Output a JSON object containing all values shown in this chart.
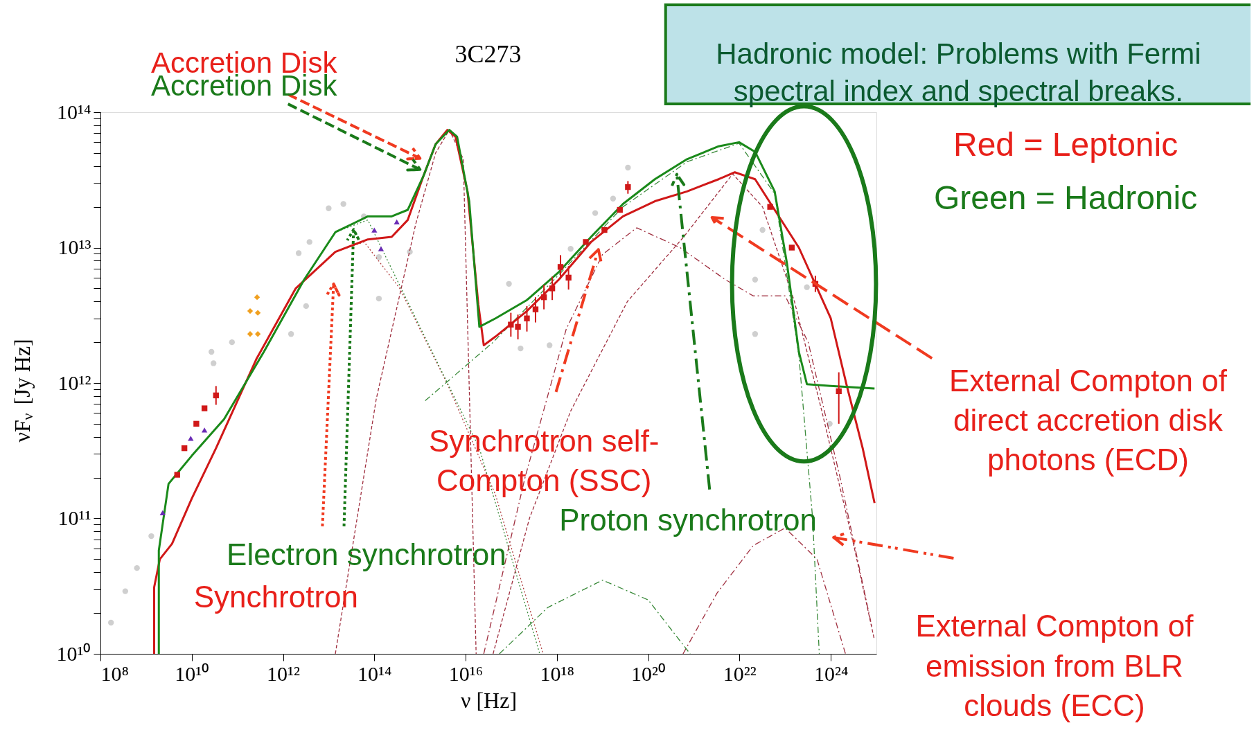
{
  "chart_data": {
    "type": "line",
    "title": "3C273",
    "xlabel": "ν [Hz]",
    "ylabel": "νF$_{ν}$ [Jy Hz]",
    "log": "xy",
    "grid": false,
    "xlim": [
      100000000.0,
      1e+25
    ],
    "ylim": [
      10000000000.0,
      100000000000000.0
    ],
    "xticks": [
      {
        "value": 100000000.0,
        "label": "10⁸"
      },
      {
        "value": 10000000000.0,
        "label": "10¹⁰"
      },
      {
        "value": 1000000000000.0,
        "label": "10¹²"
      },
      {
        "value": 100000000000000.0,
        "label": "10¹⁴"
      },
      {
        "value": 1e+16,
        "label": "10¹⁶"
      },
      {
        "value": 1e+18,
        "label": "10¹⁸"
      },
      {
        "value": 1e+20,
        "label": "10²⁰"
      },
      {
        "value": 1e+22,
        "label": "10²²"
      },
      {
        "value": 1e+24,
        "label": "10²⁴"
      }
    ],
    "yticks": [
      {
        "value": 10000000000.0,
        "label": "10¹⁰"
      },
      {
        "value": 100000000000.0,
        "label": "10¹¹"
      },
      {
        "value": 1000000000000.0,
        "label": "10¹²"
      },
      {
        "value": 10000000000000.0,
        "label": "10¹³"
      },
      {
        "value": 100000000000000.0,
        "label": "10¹⁴"
      },
      {
        "value": 20000000000.0,
        "label": null
      },
      {
        "value": 30000000000.0,
        "label": null
      },
      {
        "value": 40000000000.0,
        "label": null
      },
      {
        "value": 50000000000.0,
        "label": null
      },
      {
        "value": 60000000000.0,
        "label": null
      },
      {
        "value": 70000000000.0,
        "label": null
      },
      {
        "value": 80000000000.0,
        "label": null
      },
      {
        "value": 90000000000.0,
        "label": null
      },
      {
        "value": 200000000000.0,
        "label": null
      },
      {
        "value": 300000000000.0,
        "label": null
      },
      {
        "value": 400000000000.0,
        "label": null
      },
      {
        "value": 500000000000.0,
        "label": null
      },
      {
        "value": 600000000000.0,
        "label": null
      },
      {
        "value": 700000000000.0,
        "label": null
      },
      {
        "value": 800000000000.0,
        "label": null
      },
      {
        "value": 900000000000.0,
        "label": null
      },
      {
        "value": 2000000000000.0,
        "label": null
      },
      {
        "value": 3000000000000.0,
        "label": null
      },
      {
        "value": 4000000000000.0,
        "label": null
      },
      {
        "value": 5000000000000.0,
        "label": null
      },
      {
        "value": 6000000000000.0,
        "label": null
      },
      {
        "value": 7000000000000.0,
        "label": null
      },
      {
        "value": 8000000000000.0,
        "label": null
      },
      {
        "value": 9000000000000.0,
        "label": null
      },
      {
        "value": 20000000000000.0,
        "label": null
      },
      {
        "value": 30000000000000.0,
        "label": null
      },
      {
        "value": 40000000000000.0,
        "label": null
      },
      {
        "value": 50000000000000.0,
        "label": null
      },
      {
        "value": 60000000000000.0,
        "label": null
      },
      {
        "value": 70000000000000.0,
        "label": null
      },
      {
        "value": 80000000000000.0,
        "label": null
      },
      {
        "value": 90000000000000.0,
        "label": null
      }
    ],
    "series": [
      {
        "type": "scatter",
        "marker": "circle",
        "color": "#cfcfcf",
        "x": [
          170000000.0,
          350000000.0,
          630000000.0,
          1300000000.0,
          27000000000.0,
          30000000000.0,
          76000000000.0,
          1500000000000.0,
          3200000000000.0,
          2200000000000.0,
          3800000000000.0,
          10000000000000.0,
          21000000000000.0,
          59000000000000.0,
          126000000000000.0,
          126000000000000.0,
          600000000000000.0,
          8.9e+16,
          1.6e+17,
          6.9e+17,
          2e+18,
          6.9e+18,
          1.7e+19,
          3.6e+19,
          3.2e+22,
          2.2e+22,
          2.2e+22,
          9.5e+23,
          3e+23
        ],
        "values": [
          17000000000.0,
          29000000000.0,
          43000000000.0,
          74000000000.0,
          1700000000000.0,
          1400000000000.0,
          2000000000000.0,
          2300000000000.0,
          3700000000000.0,
          9100000000000.0,
          11000000000000.0,
          19500000000000.0,
          21000000000000.0,
          17000000000000.0,
          8500000000000.0,
          4200000000000.0,
          9300000000000.0,
          5400000000000.0,
          1800000000000.0,
          1900000000000.0,
          9800000000000.0,
          18000000000000.0,
          23000000000000.0,
          39000000000000.0,
          13500000000000.0,
          5800000000000.0,
          2300000000000.0,
          500000000000.0,
          5100000000000.0
        ]
      },
      {
        "line_style": "dotted",
        "color": "#b04040",
        "x": [
          1900000000000.0,
          14000000000000.0,
          60000000000000.0,
          360000000000000.0,
          4000000000000000.0,
          4.5e+16,
          5e+17
        ],
        "values": [
          5000000000000.0,
          9300000000000.0,
          11000000000000.0,
          5000000000000.0,
          980000000000.0,
          150000000000.0,
          10000000000.0
        ]
      },
      {
        "line_style": "dotted",
        "color": "#3a8a3a",
        "x": [
          2900000000000.0,
          14000000000000.0,
          72000000000000.0,
          810000000000000.0,
          2e+16,
          4.2e+17
        ],
        "values": [
          5800000000000.0,
          13000000000000.0,
          16000000000000.0,
          3000000000000.0,
          330000000000.0,
          10000000000.0
        ]
      },
      {
        "line_style": "dashed",
        "color": "#a03040",
        "x": [
          14000000000000.0,
          110000000000000.0,
          810000000000000.0,
          2200000000000000.0,
          4400000000000000.0,
          8900000000000000.0,
          1.7e+16
        ],
        "values": [
          10000000000.0,
          760000000000.0,
          15000000000000.0,
          50000000000000.0,
          74000000000000.0,
          45000000000000.0,
          10000000000.0
        ]
      },
      {
        "line_style": "dashdot",
        "color": "#a03040",
        "x": [
          2.5e+16,
          2e+17,
          1.6e+18,
          1e+19,
          5.6e+19,
          5e+20,
          4.9e+21,
          2e+22,
          1e+23,
          3.2e+23,
          1.6e+24,
          7.9e+24
        ],
        "values": [
          10000000000.0,
          200000000000.0,
          2500000000000.0,
          8900000000000.0,
          14000000000000.0,
          10000000000000.0,
          5800000000000.0,
          4400000000000.0,
          4400000000000.0,
          2000000000000.0,
          200000000000.0,
          16000000000.0
        ]
      },
      {
        "line_style": "dashed",
        "color": "#a03040",
        "x": [
          4e+16,
          2.5e+17,
          2e+18,
          3.5e+19,
          6e+20,
          7.1e+21,
          3.2e+22,
          1.6e+23,
          6.3e+23,
          3.2e+24,
          8.9e+24
        ],
        "values": [
          10000000000.0,
          100000000000.0,
          620000000000.0,
          4000000000000.0,
          12000000000000.0,
          35000000000000.0,
          20000000000000.0,
          4000000000000.0,
          630000000000.0,
          63000000000.0,
          13000000000.0
        ]
      },
      {
        "line_style": "dashdot",
        "color": "#a03040",
        "x": [
          5.8e+20,
          3.2e+21,
          2e+22,
          1e+23,
          5e+23,
          2.1e+24
        ],
        "values": [
          10000000000.0,
          28000000000.0,
          63000000000.0,
          85000000000.0,
          50000000000.0,
          10000000000.0
        ]
      },
      {
        "line_style": "dashdot",
        "color": "#3a8a3a",
        "x": [
          5.5e+16,
          6.3e+17,
          1e+19,
          1e+20,
          8.3e+20
        ],
        "values": [
          10000000000.0,
          22000000000.0,
          35000000000.0,
          25000000000.0,
          10000000000.0
        ]
      },
      {
        "line_style": "dashdot",
        "color": "#3a8a3a",
        "x": [
          1300000000000000.0,
          4e+16,
          1.1e+18,
          2.8e+19,
          7.1e+20,
          9.8e+21,
          5.9e+22,
          2e+23,
          4e+23,
          5.6e+23
        ],
        "values": [
          740000000000.0,
          2000000000000.0,
          6300000000000.0,
          20000000000000.0,
          43000000000000.0,
          59000000000000.0,
          25000000000000.0,
          1600000000000.0,
          100000000000.0,
          10000000000.0
        ]
      },
      {
        "line_style": "solid",
        "color": "#d01818",
        "x": [
          1500000000.0,
          1500000000.0,
          2000000000.0,
          3700000000.0,
          10000000000.0,
          34000000000.0,
          260000000000.0,
          1900000000000.0,
          14000000000000.0,
          72000000000000.0,
          240000000000000.0,
          540000000000000.0,
          1200000000000000.0,
          2200000000000000.0,
          4000000000000000.0,
          6000000000000000.0,
          1.1e+16,
          1.9e+16,
          2.5e+16,
          4.5e+16,
          2.2e+17,
          1.1e+18,
          5.6e+18,
          2.8e+19,
          1.4e+20,
          7.1e+20,
          3.5e+21,
          7.9e+21,
          2.2e+22,
          5.9e+22,
          2e+23,
          1e+24,
          2.2e+24,
          5e+24,
          9.1e+24
        ],
        "values": [
          10000000000.0,
          31000000000.0,
          50000000000.0,
          65000000000.0,
          140000000000.0,
          330000000000.0,
          1500000000000.0,
          5000000000000.0,
          9300000000000.0,
          11500000000000.0,
          12000000000000.0,
          16000000000000.0,
          34000000000000.0,
          58000000000000.0,
          74000000000000.0,
          66000000000000.0,
          26000000000000.0,
          3800000000000.0,
          1900000000000.0,
          2200000000000.0,
          3400000000000.0,
          5800000000000.0,
          11000000000000.0,
          17000000000000.0,
          22000000000000.0,
          26000000000000.0,
          32000000000000.0,
          36000000000000.0,
          32000000000000.0,
          19000000000000.0,
          10000000000000.0,
          3000000000000.0,
          980000000000.0,
          330000000000.0,
          130000000000.0
        ]
      },
      {
        "line_style": "solid",
        "color": "#1a8a1a",
        "x": [
          1900000000.0,
          1900000000.0,
          3100000000.0,
          10000000000.0,
          51000000000.0,
          380000000000.0,
          2900000000000.0,
          14000000000000.0,
          72000000000000.0,
          240000000000000.0,
          540000000000000.0,
          1200000000000000.0,
          2200000000000000.0,
          4400000000000000.0,
          6500000000000000.0,
          1.2e+16,
          2e+16,
          4.5e+16,
          2.2e+17,
          1.1e+18,
          5.6e+18,
          2.8e+19,
          1.4e+20,
          7.1e+20,
          3.5e+21,
          9.8e+21,
          2.2e+22,
          5.9e+22,
          1.1e+23,
          2e+23,
          3e+23,
          1e+24,
          9.1e+24
        ],
        "values": [
          10000000000.0,
          58000000000.0,
          180000000000.0,
          290000000000.0,
          540000000000.0,
          1700000000000.0,
          5800000000000.0,
          13000000000000.0,
          17000000000000.0,
          17000000000000.0,
          19000000000000.0,
          34000000000000.0,
          58000000000000.0,
          74000000000000.0,
          66000000000000.0,
          22000000000000.0,
          2600000000000.0,
          3000000000000.0,
          4100000000000.0,
          6600000000000.0,
          12000000000000.0,
          21000000000000.0,
          32000000000000.0,
          45000000000000.0,
          56000000000000.0,
          60000000000000.0,
          51000000000000.0,
          26000000000000.0,
          7600000000000.0,
          1700000000000.0,
          980000000000.0,
          950000000000.0,
          910000000000.0
        ]
      },
      {
        "type": "scatter",
        "marker": "triangle",
        "color": "#6a2bb5",
        "x": [
          2300000000.0,
          9500000000.0,
          19000000000.0,
          100000000000000.0,
          140000000000000.0,
          310000000000000.0
        ],
        "values": [
          110000000000.0,
          390000000000.0,
          450000000000.0,
          13500000000000.0,
          9800000000000.0,
          15500000000000.0
        ]
      },
      {
        "type": "scatter",
        "marker": "diamond",
        "color": "#f0a020",
        "x": [
          190000000000.0,
          280000000000.0,
          190000000000.0,
          280000000000.0,
          270000000000.0
        ],
        "values": [
          3400000000000.0,
          3300000000000.0,
          2300000000000.0,
          2300000000000.0,
          4300000000000.0
        ]
      },
      {
        "type": "scatter",
        "marker": "square",
        "color": "#d01818",
        "x": [
          4800000000.0,
          6900000000.0,
          12600000000.0,
          19000000000.0,
          34000000000.0,
          9.8e+16,
          1.4e+17,
          2.2e+17,
          3.4e+17,
          5.2e+17,
          7.9e+17,
          1.2e+18,
          1.8e+18,
          4.3e+18,
          1.1e+19,
          2.4e+19,
          3.6e+19,
          4.7e+22,
          1.4e+23,
          4.6e+23,
          1.5e+24
        ],
        "values": [
          210000000000.0,
          330000000000.0,
          500000000000.0,
          650000000000.0,
          810000000000.0,
          2700000000000.0,
          2600000000000.0,
          3000000000000.0,
          3500000000000.0,
          4300000000000.0,
          5000000000000.0,
          7200000000000.0,
          6000000000000.0,
          11000000000000.0,
          13500000000000.0,
          19000000000000.0,
          28000000000000.0,
          20000000000000.0,
          10000000000000.0,
          5400000000000.0,
          870000000000.0
        ],
        "errors": [
          null,
          null,
          null,
          null,
          [
            690000000000.0,
            950000000000.0
          ],
          [
            2200000000000.0,
            3300000000000.0
          ],
          [
            2100000000000.0,
            3200000000000.0
          ],
          [
            2400000000000.0,
            3700000000000.0
          ],
          [
            2800000000000.0,
            4300000000000.0
          ],
          [
            3500000000000.0,
            5300000000000.0
          ],
          [
            4100000000000.0,
            6100000000000.0
          ],
          [
            5900000000000.0,
            8800000000000.0
          ],
          [
            4900000000000.0,
            7300000000000.0
          ],
          null,
          null,
          null,
          [
            25000000000000.0,
            31000000000000.0
          ],
          null,
          null,
          [
            4700000000000.0,
            6200000000000.0
          ],
          [
            500000000000.0,
            1200000000000.0
          ]
        ]
      }
    ],
    "annotations": [
      "Accretion Disk",
      "Accretion Disk",
      "Electron synchrotron",
      "Synchrotron",
      "Synchrotron self-\nCompton (SSC)",
      "Proton synchrotron",
      "External Compton of\ndirect accretion disk\nphotons (ECD)",
      "External Compton of\nemission from BLR\nclouds (ECC)",
      "Hadronic model: Problems with Fermi\nspectral index and spectral breaks.",
      "Red = Leptonic",
      "Green = Hadronic"
    ]
  }
}
